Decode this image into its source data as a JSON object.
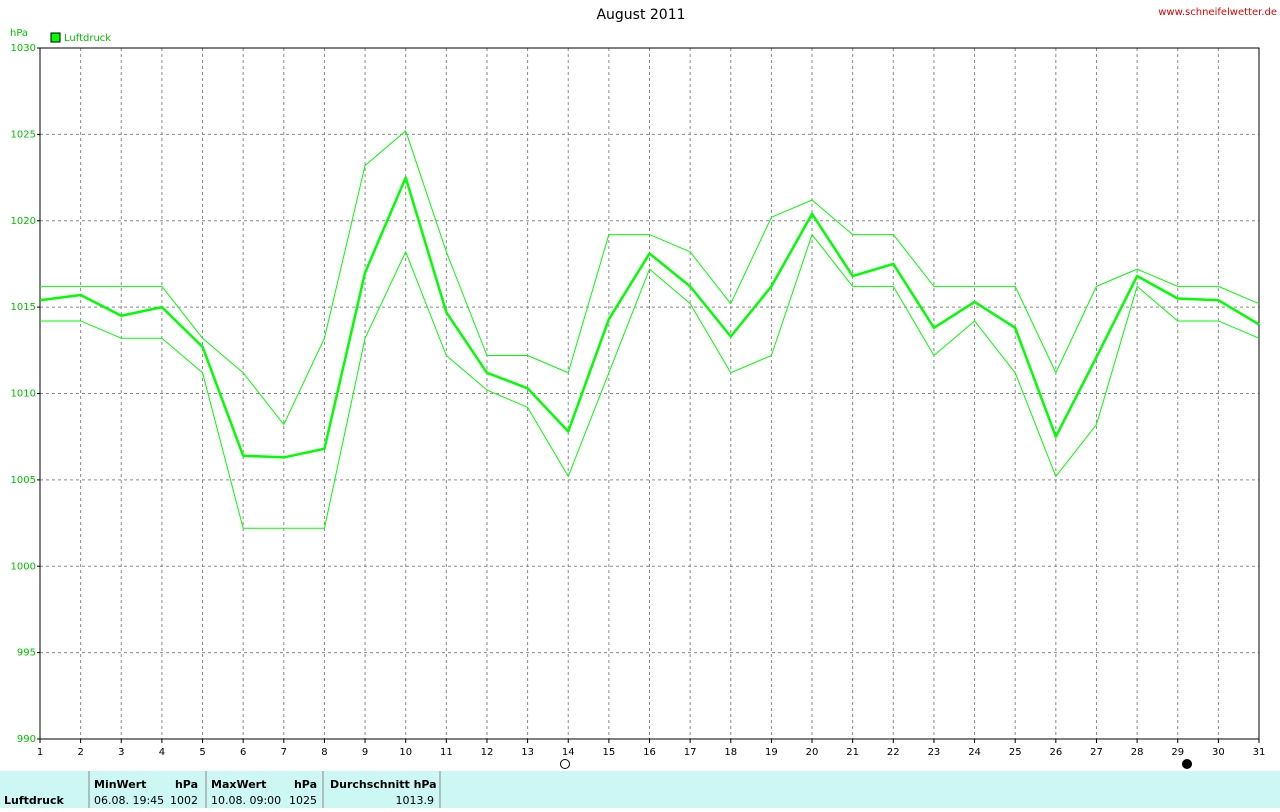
{
  "chart_data": {
    "type": "line",
    "title": "August 2011",
    "source": "www.schneifelwetter.de",
    "y_unit": "hPa",
    "x": [
      1,
      2,
      3,
      4,
      5,
      6,
      7,
      8,
      9,
      10,
      11,
      12,
      13,
      14,
      15,
      16,
      17,
      18,
      19,
      20,
      21,
      22,
      23,
      24,
      25,
      26,
      27,
      28,
      29,
      30,
      31
    ],
    "xlim": [
      1,
      31
    ],
    "xticks": [
      1,
      2,
      3,
      4,
      5,
      6,
      7,
      8,
      9,
      10,
      11,
      12,
      13,
      14,
      15,
      16,
      17,
      18,
      19,
      20,
      21,
      22,
      23,
      24,
      25,
      26,
      27,
      28,
      29,
      30,
      31
    ],
    "ylim": [
      990,
      1030
    ],
    "yticks": [
      990,
      995,
      1000,
      1005,
      1010,
      1015,
      1020,
      1025,
      1030
    ],
    "grid": true,
    "series": [
      {
        "name": "Luftdruck",
        "color": "#00ff00",
        "values": [
          1015.4,
          1015.7,
          1014.5,
          1015.0,
          1012.7,
          1006.4,
          1006.3,
          1006.8,
          1017.0,
          1022.5,
          1014.7,
          1011.2,
          1010.3,
          1007.8,
          1014.3,
          1018.1,
          1016.2,
          1013.3,
          1016.2,
          1020.4,
          1016.8,
          1017.5,
          1013.8,
          1015.3,
          1013.8,
          1007.5,
          1012.1,
          1016.8,
          1015.5,
          1015.4,
          1014.0
        ],
        "max": [
          1016.2,
          1016.2,
          1016.2,
          1016.2,
          1013.2,
          1011.2,
          1008.2,
          1013.2,
          1023.2,
          1025.2,
          1018.2,
          1012.2,
          1012.2,
          1011.2,
          1019.2,
          1019.2,
          1018.2,
          1015.2,
          1020.2,
          1021.2,
          1019.2,
          1019.2,
          1016.2,
          1016.2,
          1016.2,
          1011.2,
          1016.2,
          1017.2,
          1016.2,
          1016.2,
          1015.2
        ],
        "min": [
          1014.2,
          1014.2,
          1013.2,
          1013.2,
          1011.2,
          1002.2,
          1002.2,
          1002.2,
          1013.2,
          1018.2,
          1012.2,
          1010.2,
          1009.2,
          1005.2,
          1011.2,
          1017.2,
          1015.2,
          1011.2,
          1012.2,
          1019.2,
          1016.2,
          1016.2,
          1012.2,
          1014.2,
          1011.2,
          1005.2,
          1008.2,
          1016.2,
          1014.2,
          1014.2,
          1013.2
        ]
      }
    ]
  },
  "table": {
    "row_label": "Luftdruck",
    "min": {
      "header": "MinWert",
      "unit": "hPa",
      "time": "06.08.  19:45",
      "value": 1002
    },
    "max": {
      "header": "MaxWert",
      "unit": "hPa",
      "time": "10.08.  09:00",
      "value": 1025
    },
    "avg": {
      "header": "Durchschnitt  hPa",
      "value": 1013.9
    }
  }
}
